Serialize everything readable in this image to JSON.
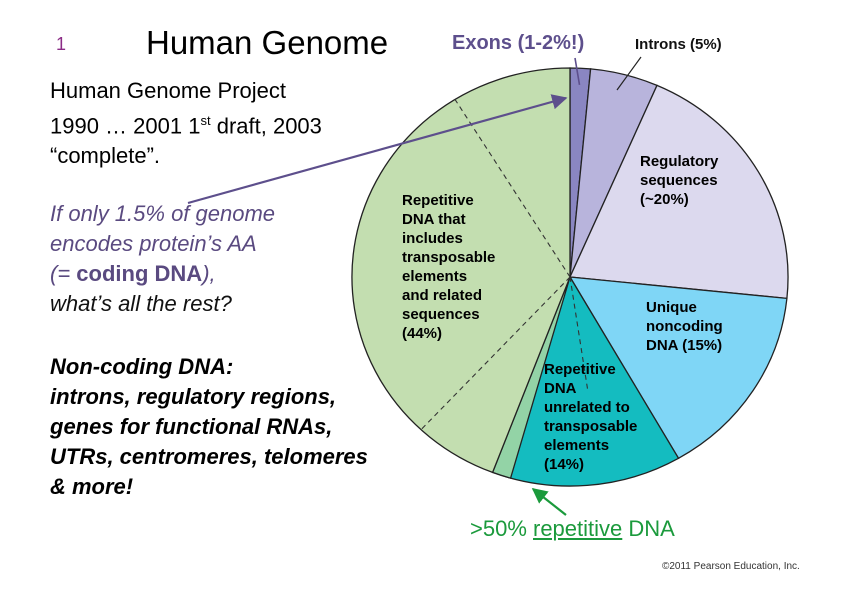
{
  "slide": {
    "number": "1",
    "title": "Human Genome"
  },
  "intro": {
    "line1": "Human Genome Project",
    "line2_pre": "1990 … 2001 1",
    "line2_sup": "st",
    "line2_post": " draft, 2003",
    "line3": "“complete”."
  },
  "question": {
    "line1": "If only 1.5% of genome",
    "line2": "encodes protein’s AA",
    "line3_pre": "(= ",
    "line3_bold": "coding DNA",
    "line3_post": "),",
    "line4": "what’s all the rest?"
  },
  "noncoding": {
    "line1": "Non-coding DNA:",
    "line2": "introns, regulatory regions,",
    "line3": "genes for functional RNAs,",
    "line4": "UTRs, centromeres, telomeres",
    "line5": "& more!"
  },
  "callouts": {
    "exons": "Exons (1-2%!)",
    "introns": "Introns (5%)",
    "repetitive_pre": ">50% ",
    "repetitive_ul": "repetitive",
    "repetitive_post": " DNA"
  },
  "copyright": "©2011 Pearson Education, Inc.",
  "colors": {
    "exons": "#8a86c2",
    "introns": "#b8b4dc",
    "regulatory": "#dcd9ee",
    "unique": "#7fd6f6",
    "repetitive_unrelated": "#14bcc0",
    "repetitive_unrelated_light": "#93d3a6",
    "repetitive_transposable": "#c3deb0",
    "question_text": "#5a4a80",
    "arrow_green": "#1b9a3c",
    "arrow_purple": "#5d4f8c"
  },
  "chart_data": {
    "type": "pie",
    "slices": [
      {
        "key": "exons",
        "value": 1.5,
        "color": "#8a86c2"
      },
      {
        "key": "introns",
        "value": 5,
        "color": "#b8b4dc",
        "label": [
          "Introns (5%)"
        ]
      },
      {
        "key": "regulatory",
        "value": 20,
        "color": "#dcd9ee",
        "label": [
          "Regulatory",
          "sequences",
          "(~20%)"
        ]
      },
      {
        "key": "unique",
        "value": 15,
        "color": "#7fd6f6",
        "label": [
          "Unique",
          "noncoding",
          "DNA (15%)"
        ]
      },
      {
        "key": "repetitive_unrelated",
        "value": 14,
        "color": "#14bcc0",
        "label": [
          "Repetitive",
          "DNA",
          "unrelated to",
          "transposable",
          "elements",
          "(14%)"
        ]
      },
      {
        "key": "repetitive_transposable",
        "value": 44,
        "color": "#c3deb0",
        "label": [
          "Repetitive",
          "DNA that",
          "includes",
          "transposable",
          "elements",
          "and related",
          "sequences",
          "(44%)"
        ]
      }
    ]
  }
}
